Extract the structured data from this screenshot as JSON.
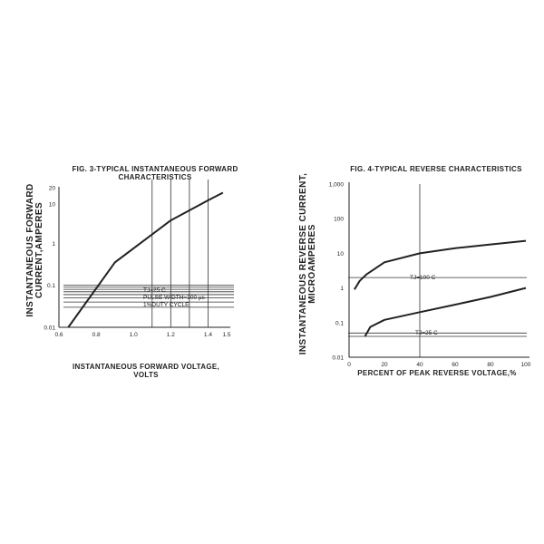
{
  "chart_data": [
    {
      "type": "line",
      "title_line1": "FIG. 3-TYPICAL INSTANTANEOUS FORWARD",
      "title_line2": "CHARACTERISTICS",
      "xlabel_line1": "INSTANTANEOUS FORWARD VOLTAGE,",
      "xlabel_line2": "VOLTS",
      "ylabel_line1": "INSTANTANEOUS FORWARD",
      "ylabel_line2": "CURRENT,AMPERES",
      "xscale": "linear",
      "yscale": "log",
      "xlim": [
        0.6,
        1.5
      ],
      "ylim": [
        0.01,
        20
      ],
      "x_ticks": [
        {
          "value": 0.6,
          "label": "0.6"
        },
        {
          "value": 0.8,
          "label": "0.8"
        },
        {
          "value": 1.0,
          "label": "1.0"
        },
        {
          "value": 1.2,
          "label": "1.2"
        },
        {
          "value": 1.4,
          "label": "1.4"
        },
        {
          "value": 1.5,
          "label": "1.5"
        }
      ],
      "y_ticks": [
        {
          "value": 0.01,
          "label": "0.01"
        },
        {
          "value": 0.1,
          "label": "0.1"
        },
        {
          "value": 1,
          "label": "1"
        },
        {
          "value": 10,
          "label": "10"
        },
        {
          "value": 20,
          "label": "20"
        }
      ],
      "vertical_gridlines": [
        1.1,
        1.2,
        1.3,
        1.4
      ],
      "horizontal_gridlines": [
        0.03,
        0.04,
        0.05,
        0.06,
        0.07,
        0.08,
        0.09,
        0.1
      ],
      "annotations": [
        "TJ=25 C",
        "PULSE WIDTH=300 µs",
        "1%DUTY CYCLE"
      ],
      "series": [
        {
          "x": [
            0.65,
            0.9,
            1.2,
            1.4,
            1.48
          ],
          "y": [
            0.01,
            0.35,
            3.5,
            10.5,
            16
          ]
        }
      ]
    },
    {
      "type": "line",
      "title_line1": "FIG. 4-TYPICAL REVERSE CHARACTERISTICS",
      "xlabel_line1": "PERCENT OF PEAK REVERSE VOLTAGE,%",
      "ylabel_line1": "INSTANTANEOUS REVERSE CURRENT,",
      "ylabel_line2": "MICROAMPERES",
      "xscale": "linear",
      "yscale": "log",
      "xlim": [
        0,
        100
      ],
      "ylim": [
        0.01,
        1000
      ],
      "x_ticks": [
        {
          "value": 0,
          "label": "0"
        },
        {
          "value": 20,
          "label": "20"
        },
        {
          "value": 40,
          "label": "40"
        },
        {
          "value": 60,
          "label": "60"
        },
        {
          "value": 80,
          "label": "80"
        },
        {
          "value": 100,
          "label": "100"
        }
      ],
      "y_ticks": [
        {
          "value": 0.01,
          "label": "0.01"
        },
        {
          "value": 0.1,
          "label": "0.1"
        },
        {
          "value": 1,
          "label": "1"
        },
        {
          "value": 10,
          "label": "10"
        },
        {
          "value": 100,
          "label": "100"
        },
        {
          "value": 1000,
          "label": "1,000"
        }
      ],
      "vertical_gridlines": [
        40
      ],
      "horizontal_gridlines": [
        2,
        0.05,
        0.04
      ],
      "annotations": [
        {
          "text": "TJ=100 C",
          "series": 0
        },
        {
          "text": "TJ=25 C",
          "series": 1
        }
      ],
      "series": [
        {
          "x": [
            3,
            6,
            10,
            20,
            40,
            60,
            80,
            100
          ],
          "y": [
            0.9,
            1.6,
            2.5,
            5.5,
            10,
            14,
            18,
            23
          ]
        },
        {
          "x": [
            9,
            12,
            20,
            40,
            60,
            80,
            100
          ],
          "y": [
            0.04,
            0.075,
            0.12,
            0.2,
            0.33,
            0.55,
            1.0
          ]
        }
      ]
    }
  ]
}
